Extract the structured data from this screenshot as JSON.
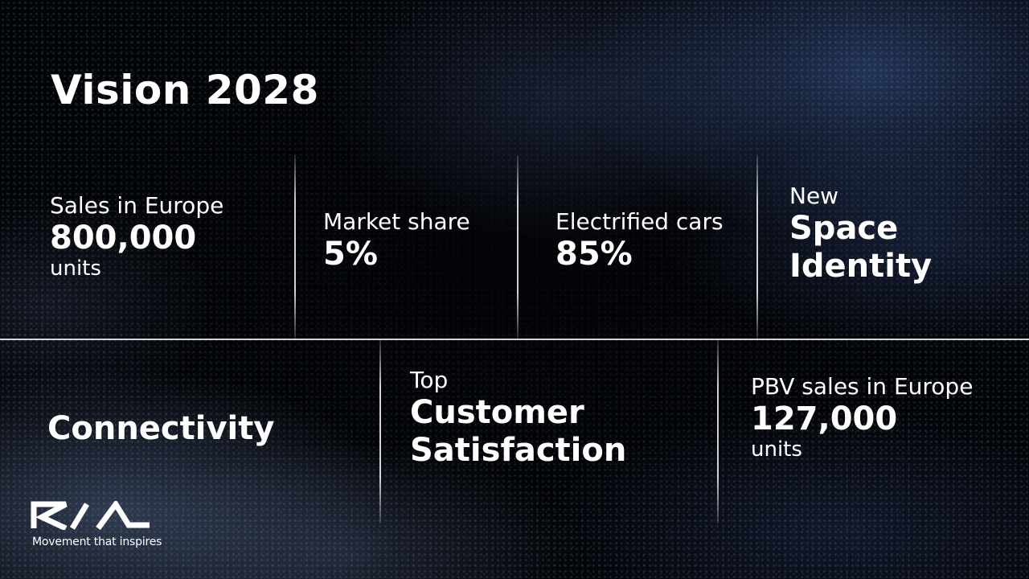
{
  "title": "Vision 2028",
  "top_row": [
    {
      "label": "Sales in Europe",
      "value": "800,000",
      "unit": "units"
    },
    {
      "label": "Market share",
      "value": "5%"
    },
    {
      "label": "Electrified cars",
      "value": "85%"
    },
    {
      "label": "New",
      "value_line1": "Space",
      "value_line2": "Identity"
    }
  ],
  "bottom_row": [
    {
      "value": "Connectivity"
    },
    {
      "label": "Top",
      "value_line1": "Customer",
      "value_line2": "Satisfaction"
    },
    {
      "label": "PBV sales in Europe",
      "value": "127,000",
      "unit": "units"
    }
  ],
  "brand": {
    "logo_text": "KIA",
    "tagline": "Movement that inspires"
  },
  "colors": {
    "text": "#ffffff",
    "background": "#030407",
    "divider": "#ebebf0"
  }
}
